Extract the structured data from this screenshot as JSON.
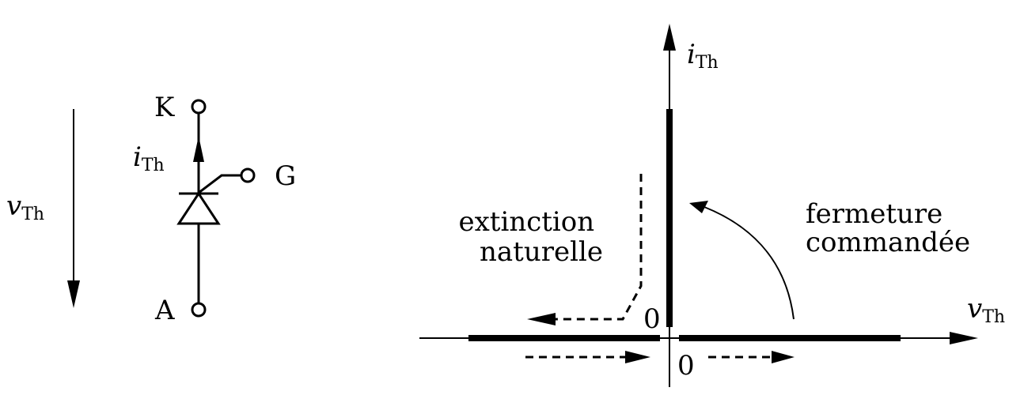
{
  "circuit": {
    "voltage_label": {
      "main": "v",
      "sub": "Th"
    },
    "current_label": {
      "main": "i",
      "sub": "Th"
    },
    "cathode_label": "K",
    "anode_label": "A",
    "gate_label": "G"
  },
  "characteristic": {
    "y_axis_label": {
      "main": "i",
      "sub": "Th"
    },
    "x_axis_label": {
      "main": "v",
      "sub": "Th"
    },
    "origin_label_top": "0",
    "origin_label_bottom": "0",
    "extinction_label": [
      "extinction",
      "naturelle"
    ],
    "fermeture_label": [
      "fermeture",
      "commandée"
    ]
  }
}
